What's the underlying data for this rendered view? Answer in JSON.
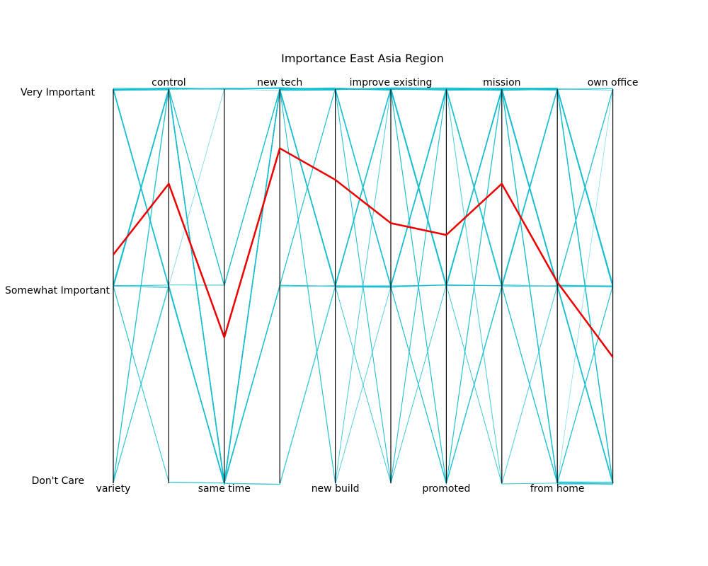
{
  "chart_data": {
    "type": "parallel-coordinates",
    "title": "Importance East Asia Region",
    "levels": [
      "Very Important",
      "Somewhat Important",
      "Don't Care"
    ],
    "axes": [
      "variety",
      "control",
      "same time",
      "new tech",
      "new build",
      "improve existing",
      "promoted",
      "mission",
      "from home",
      "own office"
    ],
    "label_position": [
      "bottom",
      "top",
      "bottom",
      "top",
      "bottom",
      "top",
      "bottom",
      "top",
      "bottom",
      "top"
    ],
    "colors": {
      "responses": "#17becf",
      "mean": "#ee0000"
    },
    "mean_profile": {
      "name": "",
      "values": [
        0.58,
        0.76,
        0.37,
        0.85,
        0.77,
        0.66,
        0.63,
        0.76,
        0.51,
        0.32
      ],
      "note_scale": "0 = Don't Care, 0.5 = Somewhat Important, 1 = Very Important"
    },
    "responses": [
      [
        1,
        1,
        1,
        1,
        1,
        1,
        1,
        1,
        1,
        1
      ],
      [
        1,
        1,
        1,
        1,
        1,
        1,
        1,
        1,
        1,
        0.5
      ],
      [
        1,
        0.5,
        0,
        0.5,
        1,
        0.5,
        0,
        0.5,
        0,
        0
      ],
      [
        0.5,
        1,
        0.5,
        1,
        0.5,
        0.5,
        0.5,
        1,
        0.5,
        0.5
      ],
      [
        0.5,
        1,
        0,
        1,
        0.5,
        1,
        0.5,
        1,
        0.5,
        0
      ],
      [
        1,
        1,
        0.5,
        1,
        1,
        0.5,
        1,
        1,
        1,
        0.5
      ],
      [
        0,
        0.5,
        0,
        1,
        0.5,
        0.5,
        0,
        0.5,
        0,
        0
      ],
      [
        0.5,
        0.5,
        0,
        0.5,
        0.5,
        0.5,
        0.5,
        0.5,
        0.5,
        0.5
      ],
      [
        0.5,
        1,
        0,
        1,
        1,
        1,
        0.5,
        1,
        0,
        0
      ],
      [
        1,
        0.5,
        0,
        1,
        0.5,
        1,
        1,
        0.5,
        0.5,
        0
      ],
      [
        0,
        0.5,
        0.5,
        1,
        0,
        1,
        0.5,
        1,
        0,
        1
      ],
      [
        0.5,
        0,
        0,
        0.5,
        0.5,
        0,
        0.5,
        0,
        0,
        0
      ],
      [
        1,
        1,
        0,
        1,
        1,
        0.5,
        1,
        1,
        0.5,
        0.5
      ],
      [
        0.5,
        1,
        0,
        0,
        0.5,
        0.5,
        1,
        0.5,
        1,
        0
      ],
      [
        0.5,
        0.5,
        0,
        1,
        1,
        1,
        0,
        1,
        1,
        0.5
      ],
      [
        0,
        1,
        0,
        1,
        1,
        0.5,
        1,
        1,
        0.5,
        1
      ],
      [
        1,
        0.5,
        1,
        1,
        0.5,
        1,
        0.5,
        1,
        1,
        0.5
      ],
      [
        0.5,
        1,
        0,
        0.5,
        1,
        1,
        1,
        0,
        0.5,
        0
      ],
      [
        1,
        1,
        0,
        1,
        0,
        0.5,
        0.5,
        1,
        0,
        0.5
      ],
      [
        0.5,
        0.5,
        0.5,
        1,
        0.5,
        0.5,
        0,
        1,
        1,
        1
      ],
      [
        0.5,
        1,
        0,
        1,
        1,
        1,
        0.5,
        0.5,
        0,
        0.5
      ],
      [
        1,
        0.5,
        0,
        1,
        1,
        0,
        1,
        1,
        1,
        0
      ],
      [
        0,
        1,
        0.5,
        1,
        0.5,
        1,
        1,
        0.5,
        0.5,
        0.5
      ],
      [
        0.5,
        1,
        0,
        1,
        0.5,
        0.5,
        0.5,
        1,
        0,
        0
      ],
      [
        1,
        1,
        0,
        0.5,
        1,
        1,
        0,
        0.5,
        1,
        1
      ],
      [
        0.5,
        1,
        0,
        1,
        1,
        0.5,
        1,
        1,
        0.5,
        0.5
      ],
      [
        1,
        0.5,
        0,
        1,
        0,
        1,
        0.5,
        1,
        0,
        0
      ],
      [
        0.5,
        1,
        1,
        1,
        1,
        1,
        0.5,
        0.5,
        1,
        0.5
      ],
      [
        0,
        0.5,
        0,
        1,
        0.5,
        0.5,
        1,
        1,
        0.5,
        0
      ],
      [
        1,
        1,
        0,
        1,
        1,
        1,
        0.5,
        1,
        0.5,
        1
      ],
      [
        0.5,
        0,
        0,
        1,
        0.5,
        0.5,
        0,
        0.5,
        0,
        0.5
      ],
      [
        1,
        1,
        0.5,
        1,
        1,
        0.5,
        1,
        1,
        1,
        0
      ],
      [
        0.5,
        1,
        0,
        0.5,
        0.5,
        1,
        0.5,
        1,
        0.5,
        0.5
      ],
      [
        1,
        0.5,
        0,
        1,
        1,
        1,
        1,
        0.5,
        0,
        0
      ],
      [
        0.5,
        1,
        0,
        1,
        0.5,
        0.5,
        0.5,
        1,
        1,
        0.5
      ],
      [
        1,
        1,
        0,
        1,
        1,
        1,
        1,
        1,
        0.5,
        0
      ]
    ]
  }
}
